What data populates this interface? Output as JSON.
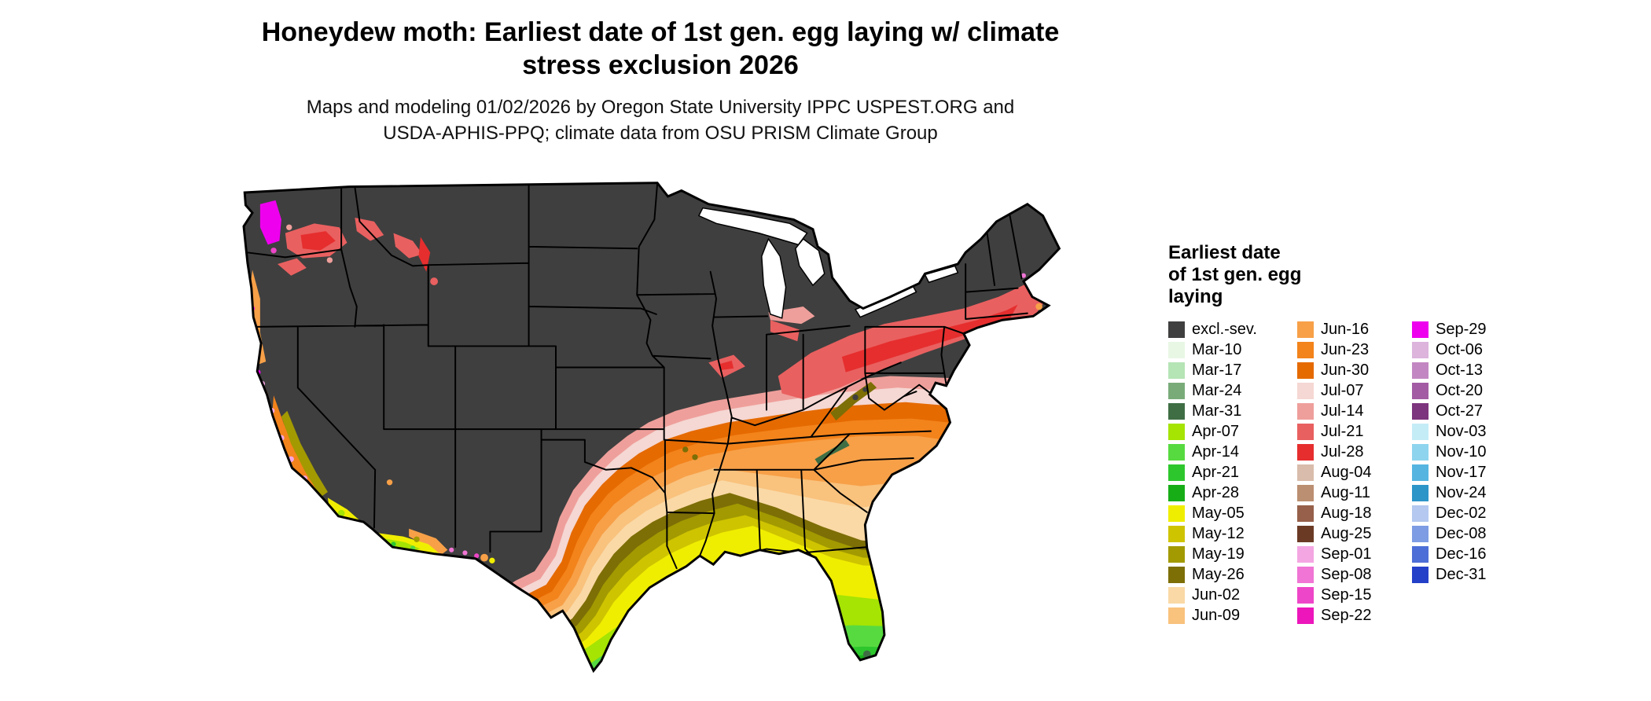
{
  "header": {
    "title_lines": [
      "Honeydew moth: Earliest date of 1st gen. egg laying w/ climate",
      "stress exclusion 2026"
    ],
    "subtitle_lines": [
      "Maps and modeling 01/02/2026 by Oregon State University IPPC USPEST.ORG and",
      "USDA-APHIS-PPQ; climate data from OSU PRISM Climate Group"
    ]
  },
  "legend": {
    "title": "Earliest date\nof 1st gen. egg\nlaying",
    "columns": [
      [
        {
          "label": "excl.-sev.",
          "color": "#3f3f3f"
        },
        {
          "label": "Mar-10",
          "color": "#e8f7e4"
        },
        {
          "label": "Mar-17",
          "color": "#b5e4b5"
        },
        {
          "label": "Mar-24",
          "color": "#79ab79"
        },
        {
          "label": "Mar-31",
          "color": "#3f6e44"
        },
        {
          "label": "Apr-07",
          "color": "#a5e403"
        },
        {
          "label": "Apr-14",
          "color": "#57da40"
        },
        {
          "label": "Apr-21",
          "color": "#2dc72d"
        },
        {
          "label": "Apr-28",
          "color": "#17ad17"
        },
        {
          "label": "May-05",
          "color": "#f0ee00"
        },
        {
          "label": "May-12",
          "color": "#cfc400"
        },
        {
          "label": "May-19",
          "color": "#a29a00"
        },
        {
          "label": "May-26",
          "color": "#7d6e06"
        },
        {
          "label": "Jun-02",
          "color": "#fad9a6"
        },
        {
          "label": "Jun-09",
          "color": "#f9c27d"
        }
      ],
      [
        {
          "label": "Jun-16",
          "color": "#f7a048"
        },
        {
          "label": "Jun-23",
          "color": "#f3831b"
        },
        {
          "label": "Jun-30",
          "color": "#e56a00"
        },
        {
          "label": "Jul-07",
          "color": "#f5d7d3"
        },
        {
          "label": "Jul-14",
          "color": "#ef9f9b"
        },
        {
          "label": "Jul-21",
          "color": "#e96060"
        },
        {
          "label": "Jul-28",
          "color": "#e62e2e"
        },
        {
          "label": "Aug-04",
          "color": "#d9bcab"
        },
        {
          "label": "Aug-11",
          "color": "#bb8f71"
        },
        {
          "label": "Aug-18",
          "color": "#96604a"
        },
        {
          "label": "Aug-25",
          "color": "#6b3a25"
        },
        {
          "label": "Sep-01",
          "color": "#f4a6e2"
        },
        {
          "label": "Sep-08",
          "color": "#f075d5"
        },
        {
          "label": "Sep-15",
          "color": "#ee46c8"
        },
        {
          "label": "Sep-22",
          "color": "#ec16bb"
        }
      ],
      [
        {
          "label": "Sep-29",
          "color": "#ee00ee"
        },
        {
          "label": "Oct-06",
          "color": "#dcb4dc"
        },
        {
          "label": "Oct-13",
          "color": "#c287c2"
        },
        {
          "label": "Oct-20",
          "color": "#a35ca3"
        },
        {
          "label": "Oct-27",
          "color": "#7d357d"
        },
        {
          "label": "Nov-03",
          "color": "#c4ecf7"
        },
        {
          "label": "Nov-10",
          "color": "#8ed4ee"
        },
        {
          "label": "Nov-17",
          "color": "#55b5e0"
        },
        {
          "label": "Nov-24",
          "color": "#2d95c8"
        },
        {
          "label": "Dec-02",
          "color": "#b4c8f0"
        },
        {
          "label": "Dec-08",
          "color": "#7e9ce4"
        },
        {
          "label": "Dec-16",
          "color": "#4d6ed6"
        },
        {
          "label": "Dec-31",
          "color": "#2440c8"
        }
      ]
    ]
  }
}
